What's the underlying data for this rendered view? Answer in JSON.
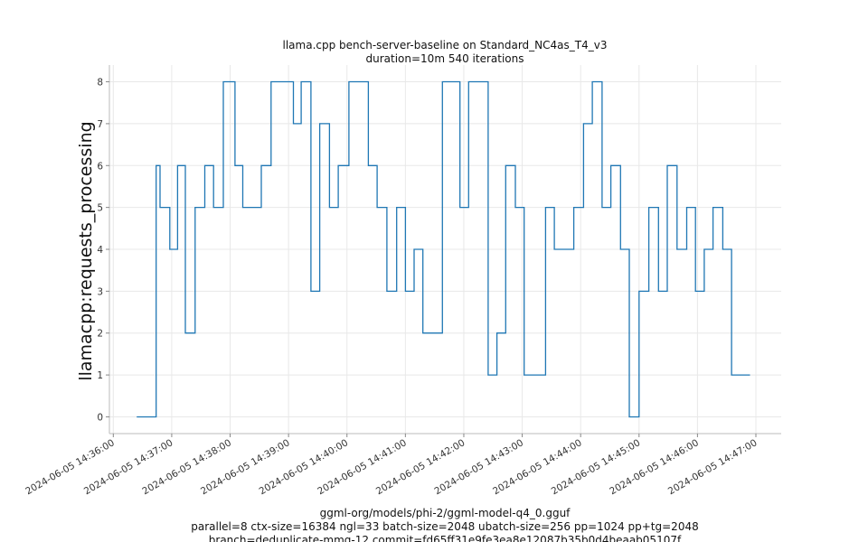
{
  "chart_data": {
    "type": "line",
    "title": "llama.cpp bench-server-baseline on Standard_NC4as_T4_v3",
    "subtitle": "duration=10m 540 iterations",
    "xlabel_lines": [
      "ggml-org/models/phi-2/ggml-model-q4_0.gguf",
      "parallel=8 ctx-size=16384 ngl=33 batch-size=2048 ubatch-size=256 pp=1024 pp+tg=2048",
      "branch=deduplicate-mmq-12 commit=fd65ff31e9fe3ea8e12087b35b0d4beaab05107f"
    ],
    "ylabel": "llamacpp:requests_processing",
    "x_ticks": [
      "2024-06-05 14:36:00",
      "2024-06-05 14:37:00",
      "2024-06-05 14:38:00",
      "2024-06-05 14:39:00",
      "2024-06-05 14:40:00",
      "2024-06-05 14:41:00",
      "2024-06-05 14:42:00",
      "2024-06-05 14:43:00",
      "2024-06-05 14:44:00",
      "2024-06-05 14:45:00",
      "2024-06-05 14:46:00",
      "2024-06-05 14:47:00"
    ],
    "y_ticks": [
      0,
      1,
      2,
      3,
      4,
      5,
      6,
      7,
      8
    ],
    "xlim": [
      "2024-06-05 14:35:56",
      "2024-06-05 14:47:26"
    ],
    "ylim": [
      -0.4,
      8.4
    ],
    "grid": true,
    "line_color": "#1f77b4",
    "series": [
      {
        "step": "post",
        "x": [
          "2024-06-05 14:36:24",
          "2024-06-05 14:36:44",
          "2024-06-05 14:36:48",
          "2024-06-05 14:36:58",
          "2024-06-05 14:37:06",
          "2024-06-05 14:37:14",
          "2024-06-05 14:37:24",
          "2024-06-05 14:37:34",
          "2024-06-05 14:37:43",
          "2024-06-05 14:37:53",
          "2024-06-05 14:38:05",
          "2024-06-05 14:38:13",
          "2024-06-05 14:38:32",
          "2024-06-05 14:38:42",
          "2024-06-05 14:39:05",
          "2024-06-05 14:39:13",
          "2024-06-05 14:39:23",
          "2024-06-05 14:39:32",
          "2024-06-05 14:39:42",
          "2024-06-05 14:39:51",
          "2024-06-05 14:40:02",
          "2024-06-05 14:40:22",
          "2024-06-05 14:40:31",
          "2024-06-05 14:40:41",
          "2024-06-05 14:40:51",
          "2024-06-05 14:41:00",
          "2024-06-05 14:41:09",
          "2024-06-05 14:41:18",
          "2024-06-05 14:41:38",
          "2024-06-05 14:41:56",
          "2024-06-05 14:42:05",
          "2024-06-05 14:42:25",
          "2024-06-05 14:42:34",
          "2024-06-05 14:42:43",
          "2024-06-05 14:42:53",
          "2024-06-05 14:43:02",
          "2024-06-05 14:43:24",
          "2024-06-05 14:43:33",
          "2024-06-05 14:43:53",
          "2024-06-05 14:44:03",
          "2024-06-05 14:44:12",
          "2024-06-05 14:44:22",
          "2024-06-05 14:44:31",
          "2024-06-05 14:44:41",
          "2024-06-05 14:44:50",
          "2024-06-05 14:45:00",
          "2024-06-05 14:45:10",
          "2024-06-05 14:45:20",
          "2024-06-05 14:45:29",
          "2024-06-05 14:45:39",
          "2024-06-05 14:45:49",
          "2024-06-05 14:45:58",
          "2024-06-05 14:46:07",
          "2024-06-05 14:46:16",
          "2024-06-05 14:46:26",
          "2024-06-05 14:46:35",
          "2024-06-05 14:46:45",
          "2024-06-05 14:46:54"
        ],
        "values": [
          0,
          6,
          5,
          4,
          6,
          2,
          5,
          6,
          5,
          8,
          6,
          5,
          6,
          8,
          7,
          8,
          3,
          7,
          5,
          6,
          8,
          6,
          5,
          3,
          5,
          3,
          4,
          2,
          8,
          5,
          8,
          1,
          2,
          6,
          5,
          1,
          5,
          4,
          5,
          7,
          8,
          5,
          6,
          4,
          0,
          3,
          5,
          3,
          6,
          4,
          5,
          3,
          4,
          5,
          4,
          1,
          1,
          1
        ]
      }
    ]
  }
}
